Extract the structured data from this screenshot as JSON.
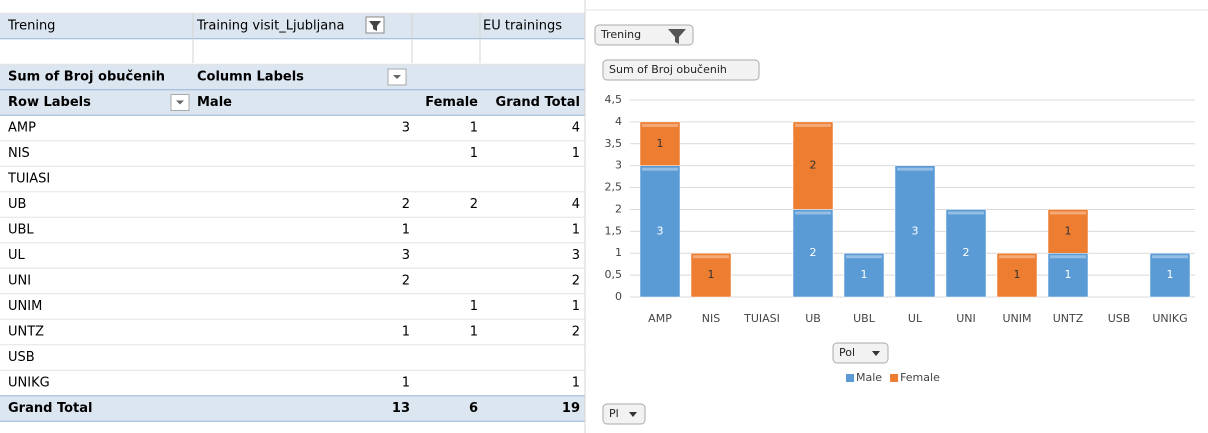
{
  "table": {
    "filter": [
      "Trening",
      "Training visit_Ljubljana",
      "EU trainings"
    ],
    "header1": [
      "Sum of Broj obučenih",
      "Column Labels"
    ],
    "header2": [
      "Row Labels",
      "Male",
      "Female",
      "Grand Total"
    ],
    "rows": [
      [
        "AMP",
        3,
        1,
        4
      ],
      [
        "NIS",
        null,
        1,
        1
      ],
      [
        "TUIASI",
        null,
        null,
        null
      ],
      [
        "UB",
        2,
        2,
        4
      ],
      [
        "UBL",
        1,
        null,
        1
      ],
      [
        "UL",
        3,
        null,
        3
      ],
      [
        "UNI",
        2,
        null,
        2
      ],
      [
        "UNIM",
        null,
        1,
        1
      ],
      [
        "UNTZ",
        1,
        1,
        2
      ],
      [
        "USB",
        null,
        null,
        null
      ],
      [
        "UNIKG",
        1,
        null,
        1
      ]
    ],
    "total": [
      "Grand Total",
      13,
      6,
      19
    ]
  },
  "chart_data": {
    "type": "bar",
    "stacked": true,
    "buttons": [
      "Trening",
      "Sum of Broj obučenih",
      "Pol",
      "Pl"
    ],
    "categories": [
      "AMP",
      "NIS",
      "TUIASI",
      "UB",
      "UBL",
      "UL",
      "UNI",
      "UNIM",
      "UNTZ",
      "USB",
      "UNIKG"
    ],
    "series": [
      {
        "name": "Male",
        "color": "#5b9bd5",
        "values": [
          3,
          null,
          null,
          2,
          1,
          3,
          2,
          null,
          1,
          null,
          1
        ]
      },
      {
        "name": "Female",
        "color": "#ed7d31",
        "values": [
          1,
          1,
          null,
          2,
          null,
          null,
          null,
          1,
          1,
          null,
          null
        ]
      }
    ],
    "ylim": [
      0,
      4.5
    ],
    "yticks": [
      0,
      {
        "value": 0.5,
        "label": "0,5"
      },
      1,
      {
        "value": 1.5,
        "label": "1,5"
      },
      2,
      {
        "value": 2.5,
        "label": "2,5"
      },
      3,
      {
        "value": 3.5,
        "label": "3,5"
      },
      4,
      {
        "value": 4.5,
        "label": "4,5"
      }
    ],
    "grid": true
  }
}
